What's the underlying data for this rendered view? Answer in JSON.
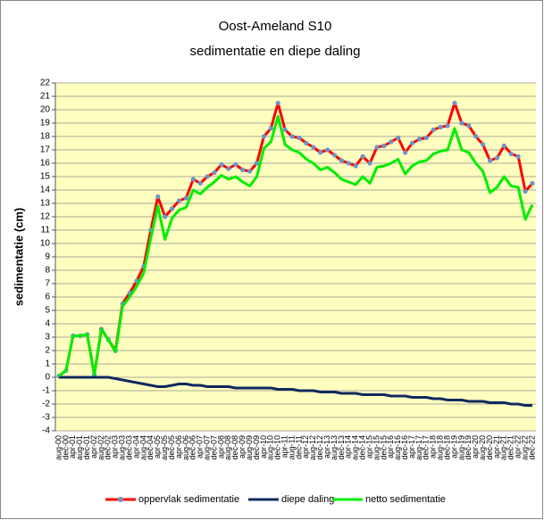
{
  "chart_data": {
    "type": "line",
    "title": "Oost-Ameland S10",
    "subtitle": "sedimentatie en diepe daling",
    "y_label": "sedimentatie (cm)",
    "categories": [
      "aug-00",
      "dec-00",
      "apr-01",
      "aug-01",
      "dec-01",
      "apr-02",
      "aug-02",
      "dec-02",
      "apr-03",
      "aug-03",
      "dec-03",
      "apr-04",
      "aug-04",
      "dec-04",
      "apr-05",
      "aug-05",
      "dec-05",
      "apr-06",
      "aug-06",
      "dec-06",
      "apr-07",
      "aug-07",
      "dec-07",
      "apr-08",
      "aug-08",
      "dec-08",
      "apr-09",
      "aug-09",
      "dec-09",
      "apr-10",
      "aug-10",
      "dec-10",
      "apr-11",
      "aug-11",
      "dec-11",
      "apr-12",
      "aug-12",
      "dec-12",
      "apr-13",
      "aug-13",
      "dec-13",
      "apr-14",
      "aug-14",
      "dec-14",
      "apr-15",
      "aug-15",
      "dec-15",
      "apr-16",
      "aug-16",
      "dec-16",
      "apr-17",
      "aug-17",
      "dec-17",
      "apr-18",
      "aug-18",
      "dec-18",
      "apr-19",
      "aug-19",
      "dec-19",
      "apr-20",
      "aug-20",
      "dec-20",
      "apr-21",
      "aug-21",
      "dec-21",
      "apr-22",
      "aug-22",
      "dec-22"
    ],
    "series": [
      {
        "name": "oppervlak sedimentatie",
        "color": "#ff0000",
        "marker_color": "#6f93c8",
        "values": [
          0.1,
          0.5,
          3.1,
          3.1,
          3.2,
          0.2,
          3.6,
          2.8,
          2.0,
          5.5,
          6.3,
          7.2,
          8.3,
          11.0,
          13.5,
          12.0,
          12.6,
          13.2,
          13.4,
          14.8,
          14.5,
          15.0,
          15.3,
          15.9,
          15.6,
          15.9,
          15.5,
          15.4,
          16.0,
          18.0,
          18.6,
          20.5,
          18.5,
          18.0,
          17.9,
          17.5,
          17.2,
          16.8,
          17.0,
          16.6,
          16.2,
          16.0,
          15.8,
          16.5,
          16.0,
          17.2,
          17.3,
          17.6,
          17.9,
          16.8,
          17.5,
          17.8,
          17.9,
          18.5,
          18.7,
          18.8,
          20.5,
          19.0,
          18.8,
          18.0,
          17.4,
          16.2,
          16.4,
          17.3,
          16.7,
          16.5,
          13.9,
          14.5
        ]
      },
      {
        "name": "diepe daling",
        "color": "#0f2a5e",
        "values": [
          0,
          0,
          0,
          0,
          0,
          0,
          0,
          0,
          -0.1,
          -0.2,
          -0.3,
          -0.4,
          -0.5,
          -0.6,
          -0.7,
          -0.7,
          -0.6,
          -0.5,
          -0.5,
          -0.6,
          -0.6,
          -0.7,
          -0.7,
          -0.7,
          -0.7,
          -0.8,
          -0.8,
          -0.8,
          -0.8,
          -0.8,
          -0.8,
          -0.9,
          -0.9,
          -0.9,
          -1.0,
          -1.0,
          -1.0,
          -1.1,
          -1.1,
          -1.1,
          -1.2,
          -1.2,
          -1.2,
          -1.3,
          -1.3,
          -1.3,
          -1.3,
          -1.4,
          -1.4,
          -1.4,
          -1.5,
          -1.5,
          -1.5,
          -1.6,
          -1.6,
          -1.7,
          -1.7,
          -1.7,
          -1.8,
          -1.8,
          -1.8,
          -1.9,
          -1.9,
          -1.9,
          -2.0,
          -2.0,
          -2.1,
          -2.1
        ]
      },
      {
        "name": "netto sedimentatie",
        "color": "#00ee00",
        "values": [
          0.1,
          0.5,
          3.1,
          3.1,
          3.2,
          0.2,
          3.6,
          2.8,
          1.9,
          5.3,
          6.0,
          6.8,
          7.8,
          10.4,
          12.8,
          10.3,
          11.9,
          12.5,
          12.7,
          14.0,
          13.7,
          14.2,
          14.6,
          15.1,
          14.8,
          15.0,
          14.6,
          14.3,
          15.0,
          17.1,
          17.6,
          19.5,
          17.4,
          17.0,
          16.8,
          16.3,
          16.0,
          15.5,
          15.7,
          15.3,
          14.8,
          14.6,
          14.4,
          15.0,
          14.5,
          15.7,
          15.8,
          16.0,
          16.3,
          15.2,
          15.8,
          16.1,
          16.2,
          16.7,
          16.9,
          17.0,
          18.6,
          17.0,
          16.8,
          16.0,
          15.4,
          13.8,
          14.2,
          15.0,
          14.3,
          14.2,
          11.8,
          12.9
        ]
      }
    ],
    "ylim": [
      -4,
      22
    ],
    "yticks": [
      -4,
      -3,
      -2,
      -1,
      0,
      1,
      2,
      3,
      4,
      5,
      6,
      7,
      8,
      9,
      10,
      11,
      12,
      13,
      14,
      15,
      16,
      17,
      18,
      19,
      20,
      21,
      22
    ],
    "grid": true,
    "plot_background": "#ffffc0",
    "legend": "bottom"
  }
}
